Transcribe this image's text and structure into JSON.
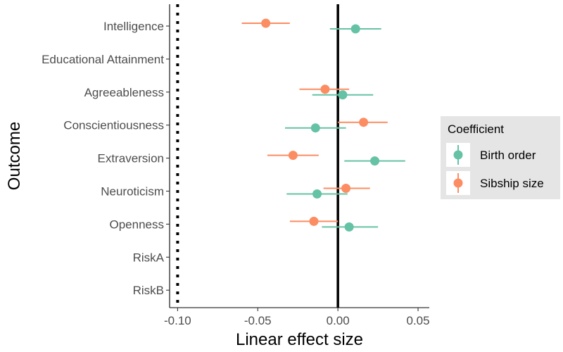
{
  "chart_data": {
    "type": "forest",
    "xlabel": "Linear effect size",
    "ylabel": "Outcome",
    "xlim": [
      -0.105,
      0.057
    ],
    "x_ticks": [
      -0.1,
      -0.05,
      0.0,
      0.05
    ],
    "x_tick_labels": [
      "-0.10",
      "-0.05",
      "0.00",
      "0.05"
    ],
    "categories": [
      "Intelligence",
      "Educational Attainment",
      "Agreeableness",
      "Conscientiousness",
      "Extraversion",
      "Neuroticism",
      "Openness",
      "RiskA",
      "RiskB"
    ],
    "reference_lines": [
      {
        "x": 0.0,
        "style": "solid"
      },
      {
        "x": -0.1,
        "style": "dotted"
      }
    ],
    "legend": {
      "title": "Coefficient",
      "position": "right"
    },
    "series": [
      {
        "name": "Birth order",
        "color": "#66c2a5",
        "points": [
          {
            "category": "Intelligence",
            "estimate": 0.011,
            "lower": -0.005,
            "upper": 0.027
          },
          {
            "category": "Agreeableness",
            "estimate": 0.003,
            "lower": -0.016,
            "upper": 0.022
          },
          {
            "category": "Conscientiousness",
            "estimate": -0.014,
            "lower": -0.033,
            "upper": 0.005
          },
          {
            "category": "Extraversion",
            "estimate": 0.023,
            "lower": 0.004,
            "upper": 0.042
          },
          {
            "category": "Neuroticism",
            "estimate": -0.013,
            "lower": -0.032,
            "upper": 0.006
          },
          {
            "category": "Openness",
            "estimate": 0.007,
            "lower": -0.01,
            "upper": 0.025
          }
        ]
      },
      {
        "name": "Sibship size",
        "color": "#fc8d62",
        "points": [
          {
            "category": "Intelligence",
            "estimate": -0.045,
            "lower": -0.06,
            "upper": -0.03
          },
          {
            "category": "Agreeableness",
            "estimate": -0.008,
            "lower": -0.024,
            "upper": 0.007
          },
          {
            "category": "Conscientiousness",
            "estimate": 0.016,
            "lower": 0.0,
            "upper": 0.031
          },
          {
            "category": "Extraversion",
            "estimate": -0.028,
            "lower": -0.044,
            "upper": -0.012
          },
          {
            "category": "Neuroticism",
            "estimate": 0.005,
            "lower": -0.009,
            "upper": 0.02
          },
          {
            "category": "Openness",
            "estimate": -0.015,
            "lower": -0.03,
            "upper": 0.0
          }
        ]
      }
    ]
  }
}
